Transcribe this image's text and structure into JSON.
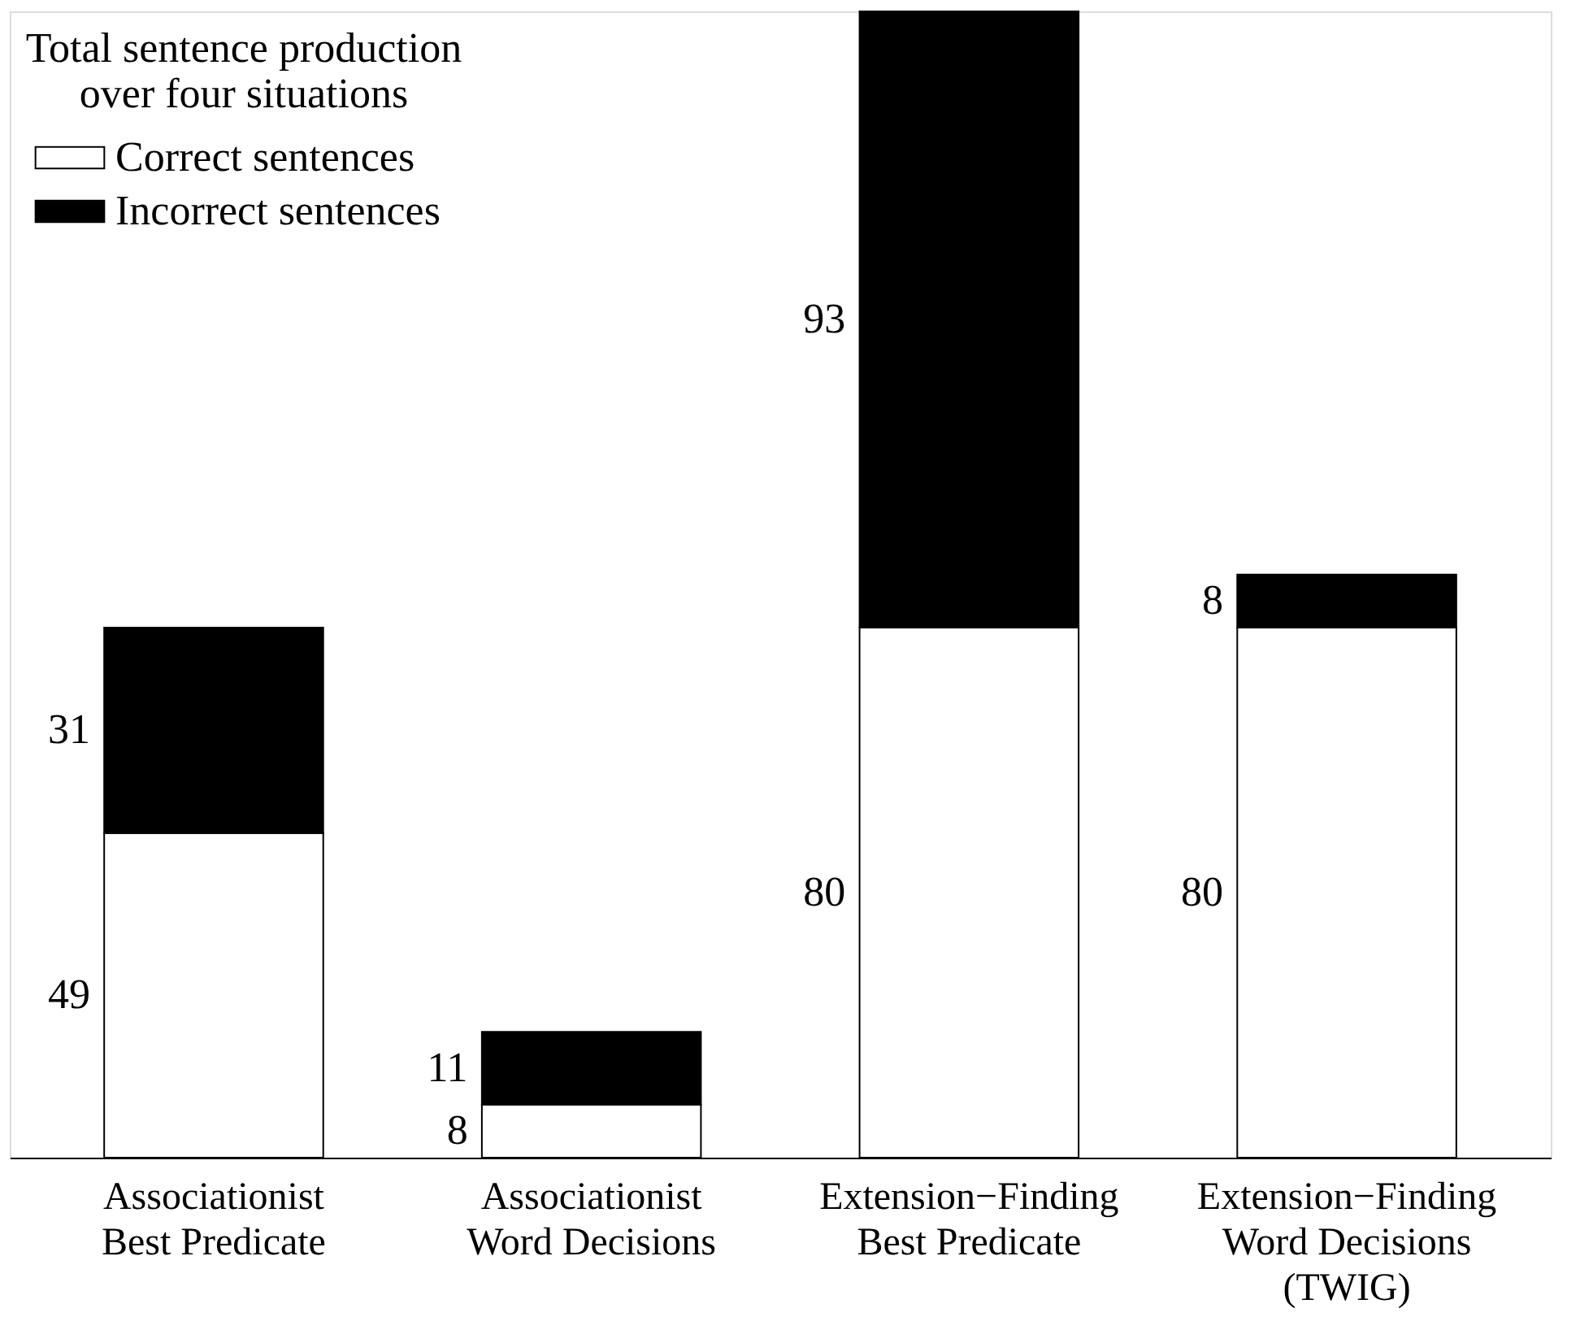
{
  "chart_data": {
    "type": "bar",
    "stacked": true,
    "data_labels": true,
    "legend": "top left",
    "legend_title": "Total sentence production over four situations",
    "categories": [
      "Associationist Best Predicate",
      "Associationist Word Decisions",
      "Extension−Finding Best Predicate",
      "Extension−Finding Word Decisions (TWIG)"
    ],
    "series": [
      {
        "name": "Correct sentences",
        "color": "#ffffff",
        "values": [
          49,
          8,
          80,
          80
        ]
      },
      {
        "name": "Incorrect sentences",
        "color": "#000000",
        "values": [
          31,
          11,
          93,
          8
        ]
      }
    ]
  }
}
